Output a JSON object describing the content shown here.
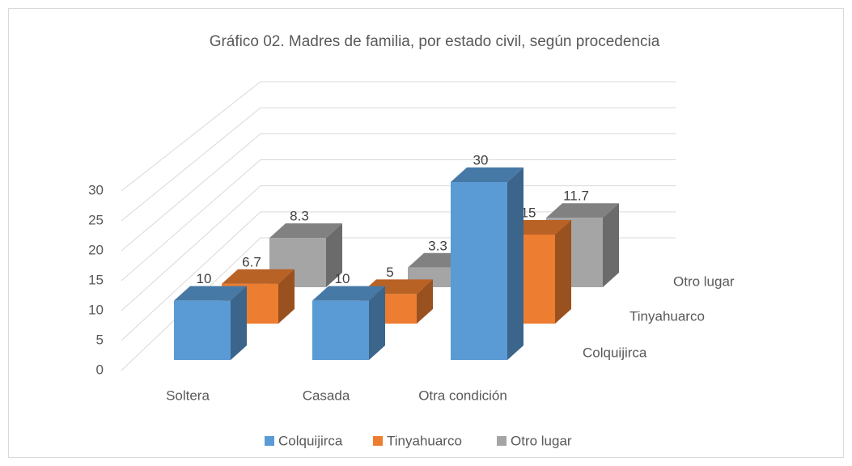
{
  "chart_data": {
    "type": "bar3d",
    "title": "Gráfico 02. Madres de familia, por estado civil, según procedencia",
    "categories": [
      "Soltera",
      "Casada",
      "Otra condición"
    ],
    "series": [
      {
        "name": "Colquijirca",
        "color": "#5b9bd5",
        "values": [
          10,
          10,
          30
        ]
      },
      {
        "name": "Tinyahuarco",
        "color": "#ed7d31",
        "values": [
          6.7,
          5,
          15
        ]
      },
      {
        "name": "Otro lugar",
        "color": "#a5a5a5",
        "values": [
          8.3,
          3.3,
          11.7
        ]
      }
    ],
    "ylim": [
      0,
      30
    ],
    "yticks": [
      0,
      5,
      10,
      15,
      20,
      25,
      30
    ],
    "grid": true,
    "legend": "bottom"
  }
}
